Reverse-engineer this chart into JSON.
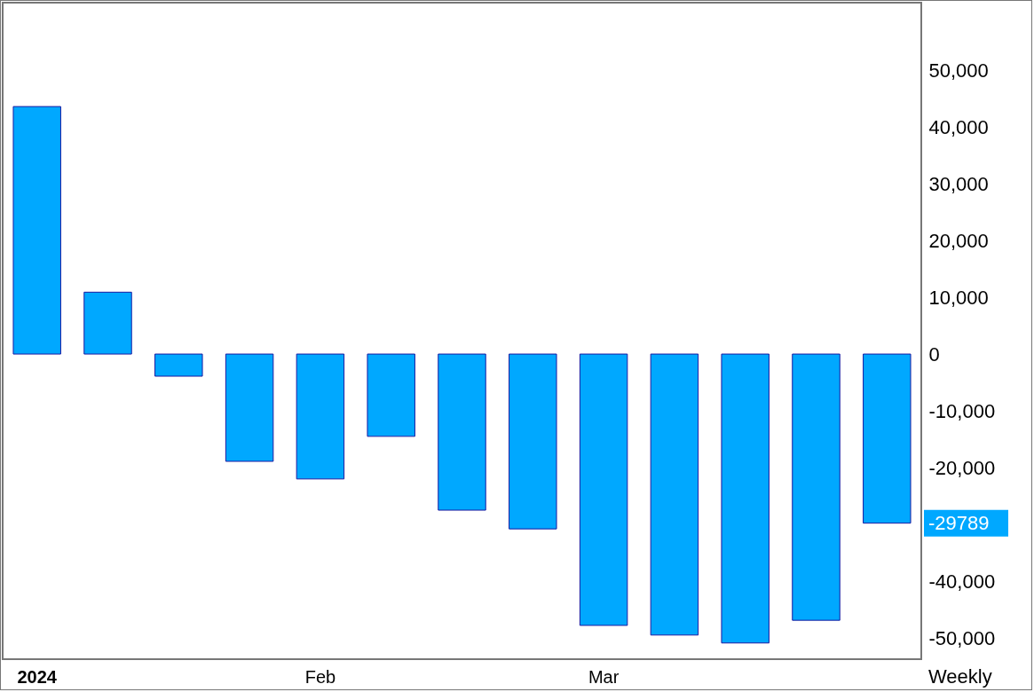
{
  "chart_data": {
    "type": "bar",
    "categories": [
      "2024",
      null,
      null,
      null,
      "Feb",
      null,
      null,
      null,
      "Mar",
      null,
      null,
      null,
      null
    ],
    "values": [
      43600,
      10900,
      -3900,
      -18900,
      -22000,
      -14500,
      -27500,
      -30800,
      -47800,
      -49500,
      -50900,
      -46900,
      -29789
    ],
    "color": "#00a8ff",
    "ylim": [
      -53750,
      61900
    ],
    "yticks": [
      {
        "value": 50000,
        "label": "50,000"
      },
      {
        "value": 40000,
        "label": "40,000"
      },
      {
        "value": 30000,
        "label": "30,000"
      },
      {
        "value": 20000,
        "label": "20,000"
      },
      {
        "value": 10000,
        "label": "10,000"
      },
      0,
      {
        "value": -10000,
        "label": "-10,000"
      },
      {
        "value": -20000,
        "label": "-20,000"
      },
      {
        "value": -40000,
        "label": "-40,000"
      },
      {
        "value": -50000,
        "label": "-50,000"
      }
    ],
    "grid": false,
    "annotations": [
      "Weekly",
      "-29789"
    ]
  }
}
